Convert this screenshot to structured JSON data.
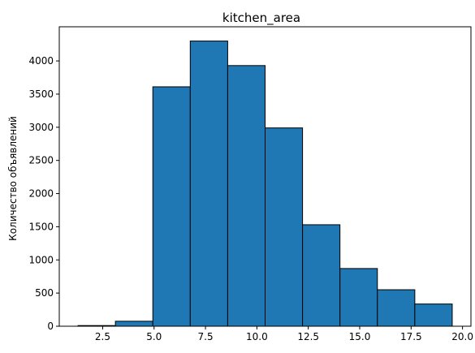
{
  "chart_data": {
    "type": "bar",
    "title": "kitchen_area",
    "xlabel": "",
    "ylabel": "Количество объявлений",
    "bins": [
      {
        "start": 1.3,
        "end": 3.12,
        "count": 10
      },
      {
        "start": 3.12,
        "end": 4.94,
        "count": 75
      },
      {
        "start": 4.94,
        "end": 6.76,
        "count": 3610
      },
      {
        "start": 6.76,
        "end": 8.58,
        "count": 4300
      },
      {
        "start": 8.58,
        "end": 10.4,
        "count": 3930
      },
      {
        "start": 10.4,
        "end": 12.22,
        "count": 2990
      },
      {
        "start": 12.22,
        "end": 14.04,
        "count": 1530
      },
      {
        "start": 14.04,
        "end": 15.86,
        "count": 870
      },
      {
        "start": 15.86,
        "end": 17.68,
        "count": 550
      },
      {
        "start": 17.68,
        "end": 19.5,
        "count": 335
      }
    ],
    "xlim": [
      0.39,
      20.41
    ],
    "ylim": [
      0,
      4515
    ],
    "xticks": [
      {
        "value": 2.5,
        "label": "2.5"
      },
      {
        "value": 5.0,
        "label": "5.0"
      },
      {
        "value": 7.5,
        "label": "7.5"
      },
      {
        "value": 10.0,
        "label": "10.0"
      },
      {
        "value": 12.5,
        "label": "12.5"
      },
      {
        "value": 15.0,
        "label": "15.0"
      },
      {
        "value": 17.5,
        "label": "17.5"
      },
      {
        "value": 20.0,
        "label": "20.0"
      }
    ],
    "yticks": [
      {
        "value": 0,
        "label": "0"
      },
      {
        "value": 500,
        "label": "500"
      },
      {
        "value": 1000,
        "label": "1000"
      },
      {
        "value": 1500,
        "label": "1500"
      },
      {
        "value": 2000,
        "label": "2000"
      },
      {
        "value": 2500,
        "label": "2500"
      },
      {
        "value": 3000,
        "label": "3000"
      },
      {
        "value": 3500,
        "label": "3500"
      },
      {
        "value": 4000,
        "label": "4000"
      }
    ],
    "bar_color": "#1f77b4",
    "edge_color": "#000000",
    "grid": false,
    "legend": "none"
  }
}
